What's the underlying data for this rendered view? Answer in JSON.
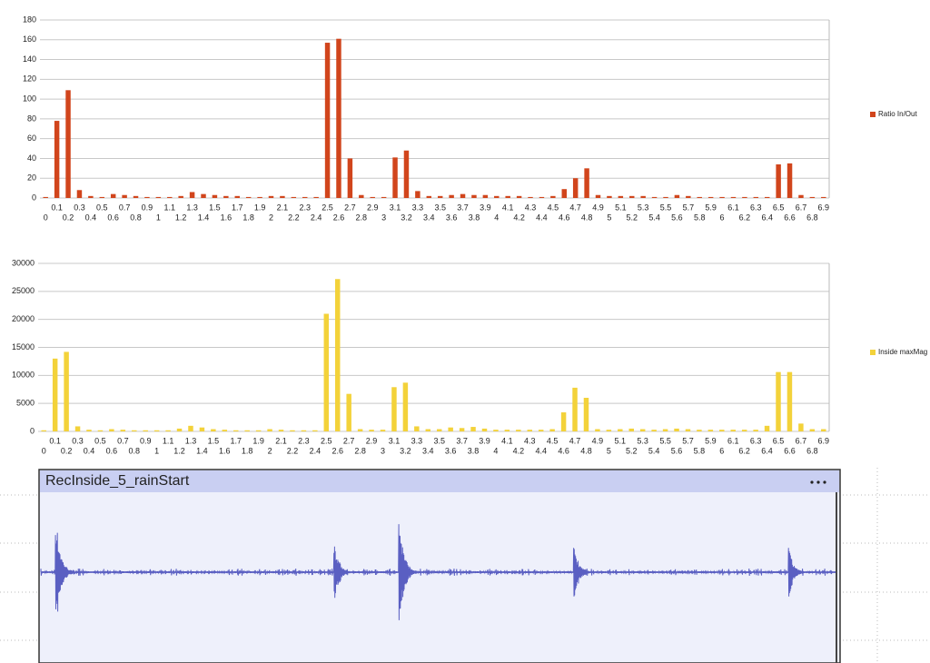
{
  "chart_data": [
    {
      "type": "bar",
      "categories": [
        "0",
        "0.1",
        "0.2",
        "0.3",
        "0.4",
        "0.5",
        "0.6",
        "0.7",
        "0.8",
        "0.9",
        "1",
        "1.1",
        "1.2",
        "1.3",
        "1.4",
        "1.5",
        "1.6",
        "1.7",
        "1.8",
        "1.9",
        "2",
        "2.1",
        "2.2",
        "2.3",
        "2.4",
        "2.5",
        "2.6",
        "2.7",
        "2.8",
        "2.9",
        "3",
        "3.1",
        "3.2",
        "3.3",
        "3.4",
        "3.5",
        "3.6",
        "3.7",
        "3.8",
        "3.9",
        "4",
        "4.1",
        "4.2",
        "4.3",
        "4.4",
        "4.5",
        "4.6",
        "4.7",
        "4.8",
        "4.9",
        "5",
        "5.1",
        "5.2",
        "5.3",
        "5.4",
        "5.5",
        "5.6",
        "5.7",
        "5.8",
        "5.9",
        "6",
        "6.1",
        "6.2",
        "6.3",
        "6.4",
        "6.5",
        "6.6",
        "6.7",
        "6.8",
        "6.9"
      ],
      "series": [
        {
          "name": "Ratio In/Out",
          "color": "#d1451c",
          "values": [
            1,
            78,
            109,
            8,
            2,
            1,
            4,
            3,
            2,
            1,
            1,
            1,
            2,
            6,
            4,
            3,
            2,
            2,
            1,
            1,
            2,
            2,
            1,
            1,
            1,
            157,
            161,
            40,
            3,
            1,
            1,
            41,
            48,
            7,
            2,
            2,
            3,
            4,
            3,
            3,
            2,
            2,
            2,
            1,
            1,
            2,
            9,
            20,
            30,
            3,
            2,
            2,
            2,
            2,
            1,
            1,
            3,
            2,
            1,
            1,
            1,
            1,
            1,
            1,
            1,
            34,
            35,
            3,
            1,
            1
          ]
        }
      ],
      "ylim": [
        0,
        180
      ],
      "yticks": [
        0,
        20,
        40,
        60,
        80,
        100,
        120,
        140,
        160,
        180
      ],
      "grid": true,
      "legend": "right"
    },
    {
      "type": "bar",
      "categories": [
        "0",
        "0.1",
        "0.2",
        "0.3",
        "0.4",
        "0.5",
        "0.6",
        "0.7",
        "0.8",
        "0.9",
        "1",
        "1.1",
        "1.2",
        "1.3",
        "1.4",
        "1.5",
        "1.6",
        "1.7",
        "1.8",
        "1.9",
        "2",
        "2.1",
        "2.2",
        "2.3",
        "2.4",
        "2.5",
        "2.6",
        "2.7",
        "2.8",
        "2.9",
        "3",
        "3.1",
        "3.2",
        "3.3",
        "3.4",
        "3.5",
        "3.6",
        "3.7",
        "3.8",
        "3.9",
        "4",
        "4.1",
        "4.2",
        "4.3",
        "4.4",
        "4.5",
        "4.6",
        "4.7",
        "4.8",
        "4.9",
        "5",
        "5.1",
        "5.2",
        "5.3",
        "5.4",
        "5.5",
        "5.6",
        "5.7",
        "5.8",
        "5.9",
        "6",
        "6.1",
        "6.2",
        "6.3",
        "6.4",
        "6.5",
        "6.6",
        "6.7",
        "6.8",
        "6.9"
      ],
      "series": [
        {
          "name": "Inside maxMag",
          "color": "#f3d23a",
          "values": [
            200,
            13000,
            14200,
            900,
            300,
            200,
            400,
            300,
            200,
            200,
            200,
            200,
            500,
            1000,
            700,
            400,
            300,
            200,
            200,
            200,
            400,
            300,
            200,
            200,
            200,
            21000,
            27200,
            6700,
            400,
            300,
            300,
            7900,
            8700,
            900,
            400,
            400,
            700,
            600,
            800,
            500,
            300,
            300,
            300,
            300,
            300,
            400,
            3400,
            7800,
            6000,
            400,
            300,
            400,
            500,
            400,
            300,
            400,
            500,
            400,
            300,
            300,
            300,
            300,
            300,
            300,
            1000,
            10600,
            10600,
            1400,
            400,
            400
          ]
        }
      ],
      "ylim": [
        0,
        30000
      ],
      "yticks": [
        0,
        5000,
        10000,
        15000,
        20000,
        25000,
        30000
      ],
      "grid": true,
      "legend": "right"
    }
  ],
  "waveform_panel": {
    "title": "RecInside_5_rainStart"
  }
}
